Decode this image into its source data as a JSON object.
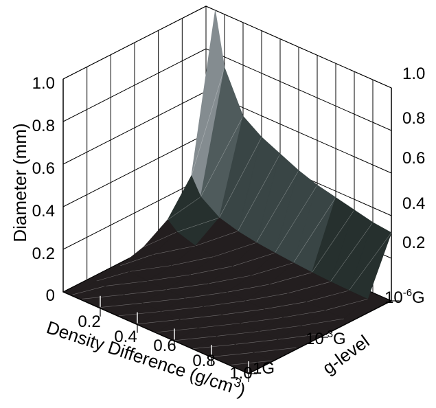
{
  "chart_data": {
    "type": "surface",
    "xlabel": "Density Difference (g/cm3)",
    "ylabel": "g-level",
    "zlabel": "Diameter (mm)",
    "x_ticks": [
      "0.2",
      "0.4",
      "0.6",
      "0.8",
      "1.0"
    ],
    "y_ticks": [
      "1G",
      "10-3G",
      "10-6G"
    ],
    "z_ticks_left": [
      "0",
      "0.2",
      "0.4",
      "0.6",
      "0.8",
      "1.0"
    ],
    "z_ticks_right": [
      "0.2",
      "0.4",
      "0.6",
      "0.8",
      "1.0"
    ],
    "zlim": [
      0,
      1.0
    ],
    "x": [
      0.05,
      0.1,
      0.2,
      0.3,
      0.4,
      0.5,
      0.6,
      0.7,
      0.8,
      0.9,
      1.0
    ],
    "y": [
      "1G",
      "10-1G",
      "10-2G",
      "10-3G",
      "10-4G",
      "10-5G",
      "10-6G"
    ],
    "z": [
      [
        0.006,
        0.005,
        0.004,
        0.003,
        0.003,
        0.002,
        0.002,
        0.002,
        0.002,
        0.002,
        0.002
      ],
      [
        0.013,
        0.009,
        0.007,
        0.006,
        0.005,
        0.005,
        0.004,
        0.004,
        0.004,
        0.004,
        0.004
      ],
      [
        0.028,
        0.02,
        0.014,
        0.012,
        0.01,
        0.009,
        0.009,
        0.008,
        0.008,
        0.008,
        0.008
      ],
      [
        0.06,
        0.043,
        0.03,
        0.025,
        0.022,
        0.02,
        0.018,
        0.017,
        0.016,
        0.016,
        0.015
      ],
      [
        0.13,
        0.092,
        0.065,
        0.053,
        0.046,
        0.041,
        0.038,
        0.035,
        0.033,
        0.031,
        0.03
      ],
      [
        0.28,
        0.2,
        0.14,
        0.115,
        0.1,
        0.09,
        0.082,
        0.075,
        0.07,
        0.067,
        0.065
      ],
      [
        1.0,
        0.75,
        0.56,
        0.5,
        0.46,
        0.42,
        0.39,
        0.37,
        0.35,
        0.33,
        0.32
      ]
    ],
    "colormap": [
      "#231e1f",
      "#26302e",
      "#394545",
      "#4f5b5c",
      "#667071",
      "#848c90",
      "#a6adb5",
      "#cfd3db",
      "#e9ecf1"
    ],
    "grid": true
  }
}
